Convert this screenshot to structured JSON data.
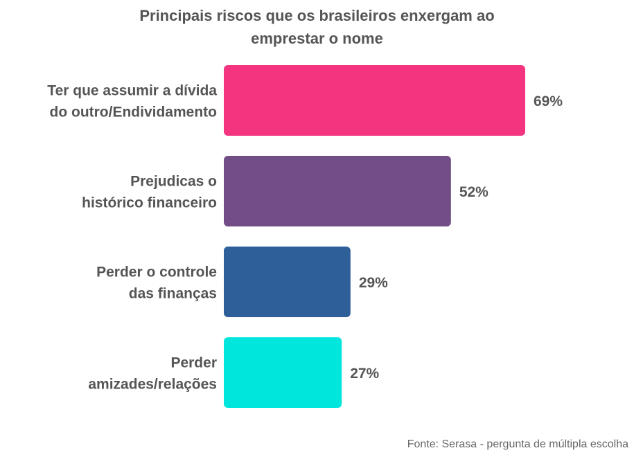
{
  "chart_data": {
    "type": "bar",
    "orientation": "horizontal",
    "title_lines": [
      "Principais riscos que os brasileiros enxergam ao",
      "emprestar o nome"
    ],
    "categories": [
      [
        "Ter que assumir a dívida",
        "do outro/Endividamento"
      ],
      [
        "Prejudicas o",
        "histórico financeiro"
      ],
      [
        "Perder o controle",
        "das finanças"
      ],
      [
        "Perder",
        "amizades/relações"
      ]
    ],
    "values": [
      69,
      52,
      29,
      27
    ],
    "value_labels": [
      "69%",
      "52%",
      "29%",
      "27%"
    ],
    "unit": "%",
    "xlim": [
      0,
      100
    ],
    "colors": [
      "#f5347f",
      "#724e87",
      "#2f5f99",
      "#00e6dc"
    ],
    "grid": false,
    "legend": "none"
  },
  "source": "Fonte: Serasa - pergunta de múltipla escolha"
}
